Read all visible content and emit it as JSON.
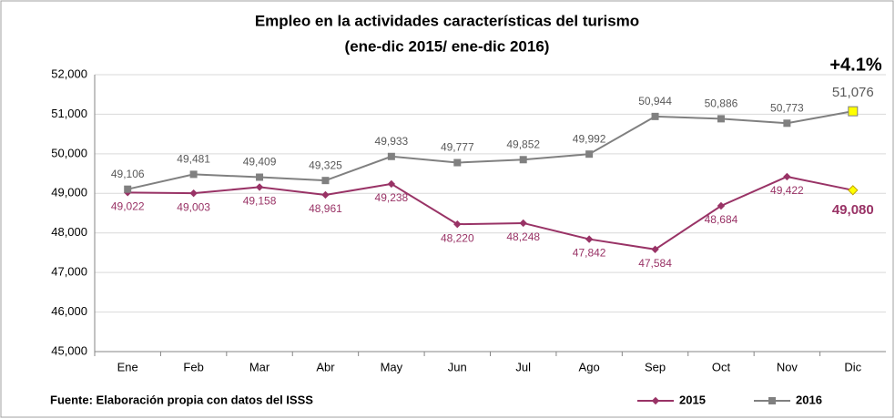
{
  "chart_data": {
    "type": "line",
    "title": [
      "Empleo en la actividades características del turismo",
      "(ene-dic 2015/ ene-dic 2016)"
    ],
    "categories": [
      "Ene",
      "Feb",
      "Mar",
      "Abr",
      "May",
      "Jun",
      "Jul",
      "Ago",
      "Sep",
      "Oct",
      "Nov",
      "Dic"
    ],
    "series": [
      {
        "name": "2015",
        "color": "#993366",
        "marker": "diamond",
        "values": [
          49022,
          49003,
          49158,
          48961,
          49238,
          48220,
          48248,
          47842,
          47584,
          48684,
          49422,
          49080
        ],
        "value_labels": [
          "49,022",
          "49,003",
          "49,158",
          "48,961",
          "49,238",
          "48,220",
          "48,248",
          "47,842",
          "47,584",
          "48,684",
          "49,422",
          "49,080"
        ]
      },
      {
        "name": "2016",
        "color": "#808080",
        "marker": "square",
        "values": [
          49106,
          49481,
          49409,
          49325,
          49933,
          49777,
          49852,
          49992,
          50944,
          50886,
          50773,
          51076
        ],
        "value_labels": [
          "49,106",
          "49,481",
          "49,409",
          "49,325",
          "49,933",
          "49,777",
          "49,852",
          "49,992",
          "50,944",
          "50,886",
          "50,773",
          "51,076"
        ]
      }
    ],
    "last_point_color": "#ffff00",
    "annotation": "+4.1%",
    "source": "Fuente: Elaboración propia con datos del ISSS",
    "ylim": [
      45000,
      52000
    ],
    "yticks": [
      {
        "value": 45000,
        "label": "45,000"
      },
      {
        "value": 46000,
        "label": "46,000"
      },
      {
        "value": 47000,
        "label": "47,000"
      },
      {
        "value": 48000,
        "label": "48,000"
      },
      {
        "value": 49000,
        "label": "49,000"
      },
      {
        "value": 50000,
        "label": "50,000"
      },
      {
        "value": 51000,
        "label": "51,000"
      },
      {
        "value": 52000,
        "label": "52,000"
      }
    ],
    "grid": true
  }
}
